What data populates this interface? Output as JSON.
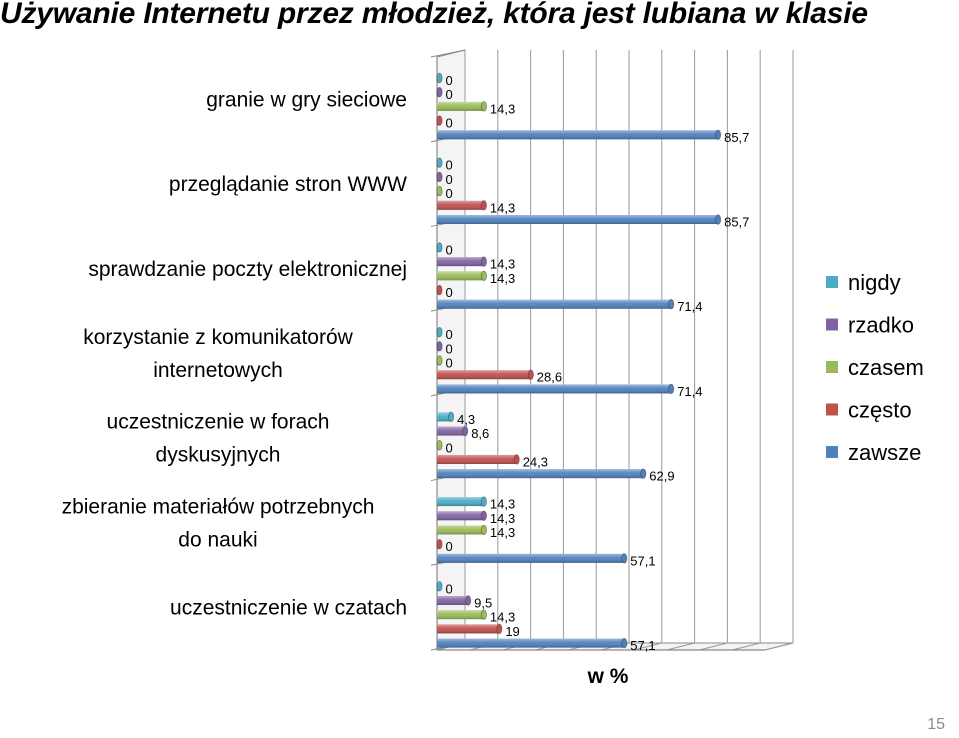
{
  "title": "Używanie Internetu przez młodzież, która jest lubiana w klasie",
  "page_number": "15",
  "chart_data": {
    "type": "bar",
    "orientation": "horizontal",
    "title": "Używanie Internetu przez młodzież, która jest lubiana w klasie",
    "xlabel": "w %",
    "ylabel": "",
    "xlim": [
      0,
      100
    ],
    "grid": true,
    "legend_position": "right",
    "categories": [
      [
        "granie w gry sieciowe"
      ],
      [
        "przeglądanie stron WWW"
      ],
      [
        "sprawdzanie poczty elektronicznej"
      ],
      [
        "korzystanie z komunikatorów",
        "internetowych"
      ],
      [
        "uczestniczenie w forach",
        "dyskusyjnych"
      ],
      [
        "zbieranie materiałów potrzebnych",
        "do nauki"
      ],
      [
        "uczestniczenie w czatach"
      ]
    ],
    "series": [
      {
        "name": "nigdy",
        "color": "#4bacc6",
        "values": [
          0,
          0,
          0,
          0,
          4.3,
          14.3,
          0
        ],
        "labels": [
          "0",
          "0",
          "0",
          "0",
          "4,3",
          "14,3",
          "0"
        ]
      },
      {
        "name": "rzadko",
        "color": "#8064a2",
        "values": [
          0,
          0,
          14.3,
          0,
          8.6,
          14.3,
          9.5
        ],
        "labels": [
          "0",
          "0",
          "14,3",
          "0",
          "8,6",
          "14,3",
          "9,5"
        ]
      },
      {
        "name": "czasem",
        "color": "#9bbb59",
        "values": [
          14.3,
          0,
          14.3,
          0,
          0,
          14.3,
          14.3
        ],
        "labels": [
          "14,3",
          "0",
          "14,3",
          "0",
          "0",
          "14,3",
          "14,3"
        ]
      },
      {
        "name": "często",
        "color": "#c0504d",
        "values": [
          0,
          14.3,
          0,
          28.6,
          24.3,
          0,
          19
        ],
        "labels": [
          "0",
          "14,3",
          "0",
          "28,6",
          "24,3",
          "0",
          "19"
        ]
      },
      {
        "name": "zawsze",
        "color": "#4f81bd",
        "values": [
          85.7,
          85.7,
          71.4,
          71.4,
          62.9,
          57.1,
          57.1
        ],
        "labels": [
          "85,7",
          "85,7",
          "71,4",
          "71,4",
          "62,9",
          "57,1",
          "57,1"
        ]
      }
    ]
  }
}
